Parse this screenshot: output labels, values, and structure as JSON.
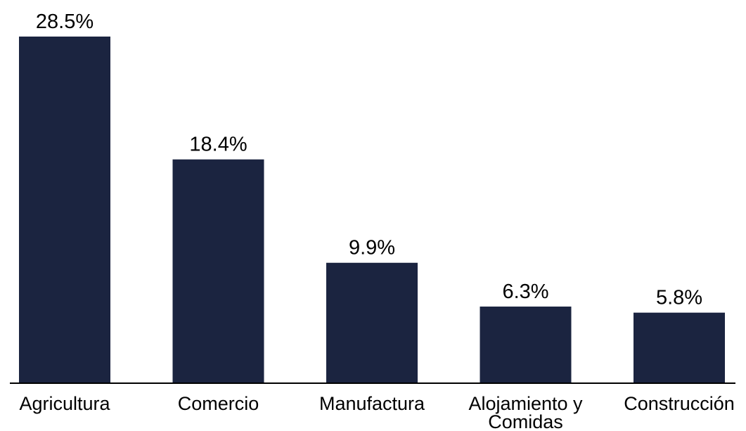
{
  "chart_data": {
    "type": "bar",
    "categories": [
      [
        "Agricultura"
      ],
      [
        "Comercio"
      ],
      [
        "Manufactura"
      ],
      [
        "Alojamiento y",
        "Comidas"
      ],
      [
        "Construcción"
      ]
    ],
    "values": [
      28.5,
      18.4,
      9.9,
      6.3,
      5.8
    ],
    "value_labels": [
      "28.5%",
      "18.4%",
      "9.9%",
      "6.3%",
      "5.8%"
    ],
    "unit": "%",
    "ylim": [
      0,
      28.5
    ],
    "grid": false,
    "bar_color": "#1b2440"
  }
}
